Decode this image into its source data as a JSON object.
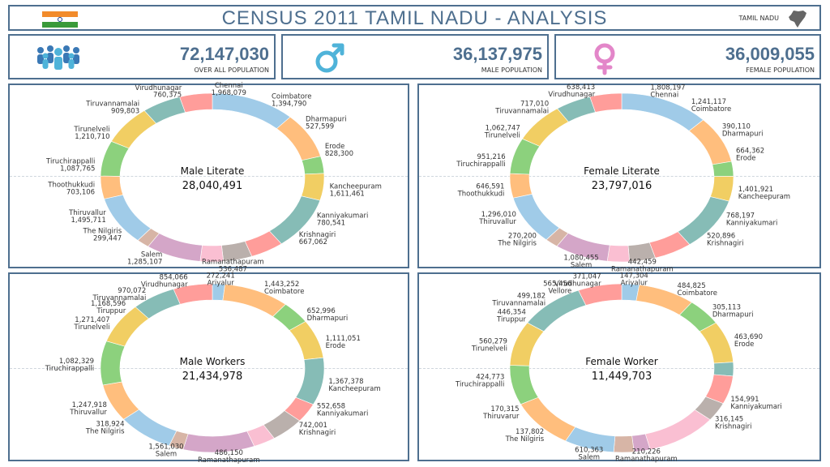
{
  "header": {
    "title": "CENSUS 2011 TAMIL NADU - ANALYSIS",
    "state_label": "TAMIL NADU",
    "flag_colors": [
      "#f28b2b",
      "#ffffff",
      "#3a9a3a"
    ],
    "flag_icon": "india-flag-icon",
    "state_icon": "tamil-nadu-map-icon"
  },
  "kpis": {
    "total": {
      "value": "72,147,030",
      "label": "OVER ALL POPULATION",
      "icon": "people-group-icon"
    },
    "male": {
      "value": "36,137,975",
      "label": "MALE POPULATION",
      "icon": "male-symbol-icon",
      "color": "#4fb3d9"
    },
    "female": {
      "value": "36,009,055",
      "label": "FEMALE POPULATION",
      "icon": "female-symbol-icon",
      "color": "#e386c9"
    }
  },
  "palette": [
    "#4e79a7",
    "#a0cbe8",
    "#f28e2b",
    "#ffbe7d",
    "#59a14f",
    "#8cd17d",
    "#b6992d",
    "#f1ce63",
    "#499894",
    "#86bcb6",
    "#e15759",
    "#ff9d9a",
    "#79706e",
    "#bab0ac",
    "#d37295",
    "#fabfd2",
    "#b07aa1",
    "#d4a6c8",
    "#9d7660",
    "#d7b5a6"
  ],
  "chart_data": [
    {
      "type": "pie",
      "name": "Male Literate",
      "total": "28,040,491",
      "slices": [
        {
          "label": "Chennai",
          "value": 1968079,
          "shown": "1,968,079"
        },
        {
          "label": "Coimbatore",
          "value": 1394790,
          "shown": "1,394,790"
        },
        {
          "label": "Dharmapuri",
          "value": 527599,
          "shown": "527,599"
        },
        {
          "label": "Erode",
          "value": 828300,
          "shown": "828,300"
        },
        {
          "label": "Kancheepuram",
          "value": 1611461,
          "shown": "1,611,461"
        },
        {
          "label": "Kanniyakumari",
          "value": 780541,
          "shown": "780,541"
        },
        {
          "label": "Krishnagiri",
          "value": 667062,
          "shown": "667,062"
        },
        {
          "label": "Ramanathapuram",
          "value": 536487,
          "shown": "536,487"
        },
        {
          "label": "Salem",
          "value": 1285107,
          "shown": "1,285,107"
        },
        {
          "label": "The Nilgiris",
          "value": 299447,
          "shown": "299,447"
        },
        {
          "label": "Thiruvallur",
          "value": 1495711,
          "shown": "1,495,711"
        },
        {
          "label": "Thoothukkudi",
          "value": 703106,
          "shown": "703,106"
        },
        {
          "label": "Tiruchirappalli",
          "value": 1087765,
          "shown": "1,087,765"
        },
        {
          "label": "Tirunelveli",
          "value": 1210710,
          "shown": "1,210,710"
        },
        {
          "label": "Tiruvannamalai",
          "value": 909803,
          "shown": "909,803"
        },
        {
          "label": "Virudhunagar",
          "value": 760375,
          "shown": "760,375"
        }
      ],
      "labels": [
        {
          "text": "Chennai",
          "val": "1,968,079",
          "angle": 8,
          "anchor": "middle"
        },
        {
          "text": "Coimbatore",
          "val": "1,394,790",
          "angle": 30,
          "anchor": "start"
        },
        {
          "text": "Dharmapuri",
          "val": "527,599",
          "angle": 52,
          "anchor": "start"
        },
        {
          "text": "Erode",
          "val": "828,300",
          "angle": 72,
          "anchor": "start"
        },
        {
          "text": "Kancheepuram",
          "val": "1,611,461",
          "angle": 98,
          "anchor": "start"
        },
        {
          "text": "Kanniyakumari",
          "val": "780,541",
          "angle": 118,
          "anchor": "start"
        },
        {
          "text": "Krishnagiri",
          "val": "667,062",
          "angle": 133,
          "anchor": "start"
        },
        {
          "text": "Ramanathapuram",
          "val": "536,487",
          "angle": 170,
          "anchor": "middle"
        },
        {
          "text": "Salem",
          "val": "1,285,107",
          "angle": 205,
          "anchor": "end"
        },
        {
          "text": "The Nilgiris",
          "val": "299,447",
          "angle": 230,
          "anchor": "end"
        },
        {
          "text": "Thiruvallur",
          "val": "1,495,711",
          "angle": 244,
          "anchor": "end"
        },
        {
          "text": "Thoothukkudi",
          "val": "703,106",
          "angle": 263,
          "anchor": "end"
        },
        {
          "text": "Tiruchirappalli",
          "val": "1,087,765",
          "angle": 278,
          "anchor": "end"
        },
        {
          "text": "Tirunelveli",
          "val": "1,210,710",
          "angle": 300,
          "anchor": "end"
        },
        {
          "text": "Tiruvannamalai",
          "val": "909,803",
          "angle": 322,
          "anchor": "end"
        },
        {
          "text": "Virudhunagar",
          "val": "760,375",
          "angle": 345,
          "anchor": "end"
        }
      ]
    },
    {
      "type": "pie",
      "name": "Female Literate",
      "total": "23,797,016",
      "slices": [
        {
          "label": "Chennai",
          "value": 1808197,
          "shown": "1,808,197"
        },
        {
          "label": "Coimbatore",
          "value": 1241117,
          "shown": "1,241,117"
        },
        {
          "label": "Dharmapuri",
          "value": 390110,
          "shown": "390,110"
        },
        {
          "label": "Erode",
          "value": 664362,
          "shown": "664,362"
        },
        {
          "label": "Kancheepuram",
          "value": 1401921,
          "shown": "1,401,921"
        },
        {
          "label": "Kanniyakumari",
          "value": 768197,
          "shown": "768,197"
        },
        {
          "label": "Krishnagiri",
          "value": 520896,
          "shown": "520,896"
        },
        {
          "label": "Ramanathapuram",
          "value": 442459,
          "shown": "442,459"
        },
        {
          "label": "Salem",
          "value": 1080455,
          "shown": "1,080,455"
        },
        {
          "label": "The Nilgiris",
          "value": 270200,
          "shown": "270,200"
        },
        {
          "label": "Thiruvallur",
          "value": 1296010,
          "shown": "1,296,010"
        },
        {
          "label": "Thoothukkudi",
          "value": 646591,
          "shown": "646,591"
        },
        {
          "label": "Tiruchirappalli",
          "value": 951216,
          "shown": "951,216"
        },
        {
          "label": "Tirunelveli",
          "value": 1062747,
          "shown": "1,062,747"
        },
        {
          "label": "Tiruvannamalai",
          "value": 717010,
          "shown": "717,010"
        },
        {
          "label": "Virudhunagar",
          "value": 638413,
          "shown": "638,413"
        }
      ],
      "labels": [
        {
          "text": "Chennai",
          "val": "1,808,197",
          "angle": 14,
          "anchor": "start",
          "order": "val-first"
        },
        {
          "text": "Coimbatore",
          "val": "1,241,117",
          "angle": 36,
          "anchor": "start",
          "order": "val-first"
        },
        {
          "text": "Dharmapuri",
          "val": "390,110",
          "angle": 58,
          "anchor": "start",
          "order": "val-first"
        },
        {
          "text": "Erode",
          "val": "664,362",
          "angle": 75,
          "anchor": "start",
          "order": "val-first"
        },
        {
          "text": "Kancheepuram",
          "val": "1,401,921",
          "angle": 100,
          "anchor": "start",
          "order": "val-first"
        },
        {
          "text": "Kanniyakumari",
          "val": "768,197",
          "angle": 118,
          "anchor": "start",
          "order": "val-first"
        },
        {
          "text": "Krishnagiri",
          "val": "520,896",
          "angle": 134,
          "anchor": "start",
          "order": "val-first"
        },
        {
          "text": "Ramanathapuram",
          "val": "442,459",
          "angle": 170,
          "anchor": "middle",
          "order": "val-first"
        },
        {
          "text": "Salem",
          "val": "1,080,455",
          "angle": 200,
          "anchor": "middle",
          "order": "val-first"
        },
        {
          "text": "The Nilgiris",
          "val": "270,200",
          "angle": 226,
          "anchor": "end",
          "order": "val-first"
        },
        {
          "text": "Thiruvallur",
          "val": "1,296,010",
          "angle": 243,
          "anchor": "end",
          "order": "val-first"
        },
        {
          "text": "Thoothukkudi",
          "val": "646,591",
          "angle": 262,
          "anchor": "end",
          "order": "val-first"
        },
        {
          "text": "Tiruchirappalli",
          "val": "951,216",
          "angle": 281,
          "anchor": "end",
          "order": "val-first"
        },
        {
          "text": "Tirunelveli",
          "val": "1,062,747",
          "angle": 301,
          "anchor": "end",
          "order": "val-first"
        },
        {
          "text": "Tiruvannamalai",
          "val": "717,010",
          "angle": 322,
          "anchor": "end",
          "order": "val-first"
        },
        {
          "text": "Virudhunagar",
          "val": "638,413",
          "angle": 347,
          "anchor": "end",
          "order": "val-first"
        }
      ]
    },
    {
      "type": "pie",
      "name": "Male Workers",
      "total": "21,434,978",
      "slices": [
        {
          "label": "Ariyalur",
          "value": 272241,
          "shown": "272,241"
        },
        {
          "label": "Coimbatore",
          "value": 1443252,
          "shown": "1,443,252"
        },
        {
          "label": "Dharmapuri",
          "value": 652996,
          "shown": "652,996"
        },
        {
          "label": "Erode",
          "value": 1111051,
          "shown": "1,111,051"
        },
        {
          "label": "Kancheepuram",
          "value": 1367378,
          "shown": "1,367,378"
        },
        {
          "label": "Kanniyakumari",
          "value": 552658,
          "shown": "552,658"
        },
        {
          "label": "Krishnagiri",
          "value": 742001,
          "shown": "742,001"
        },
        {
          "label": "Ramanathapuram",
          "value": 486150,
          "shown": "486,150"
        },
        {
          "label": "Salem",
          "value": 1561030,
          "shown": "1,561,030"
        },
        {
          "label": "The Nilgiris",
          "value": 318924,
          "shown": "318,924"
        },
        {
          "label": "Thiruvallur",
          "value": 1247918,
          "shown": "1,247,918"
        },
        {
          "label": "Tiruchirappalli",
          "value": 1082329,
          "shown": "1,082,329"
        },
        {
          "label": "Tirunelveli",
          "value": 1271407,
          "shown": "1,271,407"
        },
        {
          "label": "Tiruppur",
          "value": 1168596,
          "shown": "1,168,596"
        },
        {
          "label": "Tiruvannamalai",
          "value": 970072,
          "shown": "970,072"
        },
        {
          "label": "Virudhunagar",
          "value": 854066,
          "shown": "854,066"
        }
      ],
      "labels": [
        {
          "text": "Ariyalur",
          "val": "272,241",
          "angle": 4,
          "anchor": "middle",
          "order": "val-first"
        },
        {
          "text": "Coimbatore",
          "val": "1,443,252",
          "angle": 26,
          "anchor": "start",
          "order": "val-first"
        },
        {
          "text": "Dharmapuri",
          "val": "652,996",
          "angle": 53,
          "anchor": "start",
          "order": "val-first"
        },
        {
          "text": "Erode",
          "val": "1,111,051",
          "angle": 73,
          "anchor": "start",
          "order": "val-first"
        },
        {
          "text": "Kancheepuram",
          "val": "1,367,378",
          "angle": 101,
          "anchor": "start",
          "order": "val-first"
        },
        {
          "text": "Kanniyakumari",
          "val": "552,658",
          "angle": 118,
          "anchor": "start",
          "order": "val-first"
        },
        {
          "text": "Krishnagiri",
          "val": "742,001",
          "angle": 133,
          "anchor": "start",
          "order": "val-first"
        },
        {
          "text": "Ramanathapuram",
          "val": "486,150",
          "angle": 172,
          "anchor": "middle",
          "order": "val-first"
        },
        {
          "text": "Salem",
          "val": "1,561,030",
          "angle": 203,
          "anchor": "middle",
          "order": "val-first"
        },
        {
          "text": "The Nilgiris",
          "val": "318,924",
          "angle": 228,
          "anchor": "end",
          "order": "val-first"
        },
        {
          "text": "Thiruvallur",
          "val": "1,247,918",
          "angle": 243,
          "anchor": "end",
          "order": "val-first"
        },
        {
          "text": "Tiruchirappalli",
          "val": "1,082,329",
          "angle": 272,
          "anchor": "end",
          "order": "val-first"
        },
        {
          "text": "Tirunelveli",
          "val": "1,271,407",
          "angle": 300,
          "anchor": "end",
          "order": "val-first"
        },
        {
          "text": "Tiruppur",
          "val": "1,168,596",
          "angle": 313,
          "anchor": "end",
          "order": "val-first"
        },
        {
          "text": "Tiruvannamalai",
          "val": "970,072",
          "angle": 326,
          "anchor": "end",
          "order": "val-first"
        },
        {
          "text": "Virudhunagar",
          "val": "854,066",
          "angle": 348,
          "anchor": "end",
          "order": "val-first"
        }
      ]
    },
    {
      "type": "pie",
      "name": "Female Worker",
      "total": "11,449,703",
      "slices": [
        {
          "label": "Ariyalur",
          "value": 147304,
          "shown": "147,304"
        },
        {
          "label": "Coimbatore",
          "value": 484825,
          "shown": "484,825"
        },
        {
          "label": "Dharmapuri",
          "value": 305113,
          "shown": "305,113"
        },
        {
          "label": "Erode",
          "value": 463690,
          "shown": "463,690"
        },
        {
          "label": "Kanniyakumari",
          "value": 154991,
          "shown": "154,991"
        },
        {
          "label": "Krishnagiri",
          "value": 316145,
          "shown": "316,145"
        },
        {
          "label": "Ramanathapuram",
          "value": 210226,
          "shown": "210,226"
        },
        {
          "label": "Salem",
          "value": 610363,
          "shown": "610,363"
        },
        {
          "label": "The Nilgiris",
          "value": 137802,
          "shown": "137,802"
        },
        {
          "label": "Thiruvarur",
          "value": 170315,
          "shown": "170,315"
        },
        {
          "label": "Tiruchirappalli",
          "value": 424773,
          "shown": "424,773"
        },
        {
          "label": "Tirunelveli",
          "value": 560279,
          "shown": "560,279"
        },
        {
          "label": "Tiruppur",
          "value": 446354,
          "shown": "446,354"
        },
        {
          "label": "Tiruvannamalai",
          "value": 499182,
          "shown": "499,182"
        },
        {
          "label": "Vellore",
          "value": 565456,
          "shown": "565,456"
        },
        {
          "label": "Virudhunagar",
          "value": 371047,
          "shown": "371,047"
        }
      ],
      "labels": [
        {
          "text": "Ariyalur",
          "val": "147,304",
          "angle": 6,
          "anchor": "middle",
          "order": "val-first"
        },
        {
          "text": "Coimbatore",
          "val": "484,825",
          "angle": 28,
          "anchor": "start",
          "order": "val-first"
        },
        {
          "text": "Dharmapuri",
          "val": "305,113",
          "angle": 50,
          "anchor": "start",
          "order": "val-first"
        },
        {
          "text": "Erode",
          "val": "463,690",
          "angle": 72,
          "anchor": "start",
          "order": "val-first"
        },
        {
          "text": "Kanniyakumari",
          "val": "154,991",
          "angle": 113,
          "anchor": "start",
          "order": "val-first"
        },
        {
          "text": "Krishnagiri",
          "val": "316,145",
          "angle": 128,
          "anchor": "start",
          "order": "val-first"
        },
        {
          "text": "Ramanathapuram",
          "val": "210,226",
          "angle": 168,
          "anchor": "middle",
          "order": "val-first"
        },
        {
          "text": "Salem",
          "val": "610,363",
          "angle": 196,
          "anchor": "middle",
          "order": "val-first"
        },
        {
          "text": "The Nilgiris",
          "val": "137,802",
          "angle": 221,
          "anchor": "end",
          "order": "val-first"
        },
        {
          "text": "Thiruvarur",
          "val": "170,315",
          "angle": 240,
          "anchor": "end",
          "order": "val-first"
        },
        {
          "text": "Tiruchirappalli",
          "val": "424,773",
          "angle": 262,
          "anchor": "end",
          "order": "val-first"
        },
        {
          "text": "Tirunelveli",
          "val": "560,279",
          "angle": 285,
          "anchor": "end",
          "order": "val-first"
        },
        {
          "text": "Tiruppur",
          "val": "446,354",
          "angle": 306,
          "anchor": "end",
          "order": "val-first"
        },
        {
          "text": "Tiruvannamalai",
          "val": "499,182",
          "angle": 320,
          "anchor": "end",
          "order": "val-first"
        },
        {
          "text": "Vellore",
          "val": "565,456",
          "angle": 335,
          "anchor": "end",
          "order": "val-first"
        },
        {
          "text": "Virudhunagar",
          "val": "371,047",
          "angle": 350,
          "anchor": "end",
          "order": "val-first"
        }
      ]
    }
  ]
}
